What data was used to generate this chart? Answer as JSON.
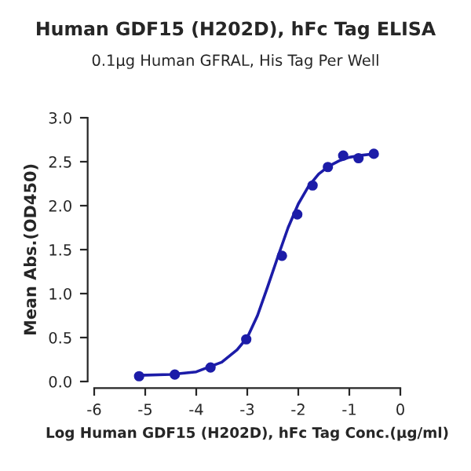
{
  "chart_data": {
    "type": "scatter",
    "title": "Human GDF15 (H202D), hFc Tag ELISA",
    "subtitle": "0.1µg Human GFRAL, His Tag Per Well",
    "xlabel": "Log Human GDF15 (H202D), hFc Tag Conc.(µg/ml)",
    "ylabel": "Mean Abs.(OD450)",
    "series": [
      {
        "color": "#1c1ca8",
        "marker": "circle",
        "x": [
          -5.12,
          -4.42,
          -3.72,
          -3.02,
          -2.32,
          -2.02,
          -1.72,
          -1.42,
          -1.12,
          -0.82,
          -0.52
        ],
        "values": [
          0.06,
          0.08,
          0.16,
          0.48,
          1.43,
          1.9,
          2.23,
          2.44,
          2.57,
          2.54,
          2.59
        ]
      },
      {
        "type": "line",
        "color": "#1c1ca8",
        "x": [
          -5.12,
          -4.5,
          -4.0,
          -3.5,
          -3.2,
          -3.0,
          -2.8,
          -2.6,
          -2.4,
          -2.2,
          -2.0,
          -1.8,
          -1.6,
          -1.4,
          -1.2,
          -1.0,
          -0.8,
          -0.52
        ],
        "values": [
          0.07,
          0.08,
          0.11,
          0.22,
          0.36,
          0.5,
          0.75,
          1.08,
          1.42,
          1.75,
          2.02,
          2.22,
          2.36,
          2.45,
          2.51,
          2.55,
          2.57,
          2.59
        ]
      }
    ],
    "xlim": [
      -6,
      0
    ],
    "xticks": [
      -6,
      -5,
      -4,
      -3,
      -2,
      -1,
      0
    ],
    "ylim": [
      0,
      3
    ],
    "yticks": [
      {
        "value": 0,
        "label": "0.0"
      },
      {
        "value": 0.5,
        "label": "0.5"
      },
      {
        "value": 1,
        "label": "1.0"
      },
      {
        "value": 1.5,
        "label": "1.5"
      },
      {
        "value": 2,
        "label": "2.0"
      },
      {
        "value": 2.5,
        "label": "2.5"
      },
      {
        "value": 3,
        "label": "3.0"
      }
    ],
    "grid": false,
    "legend": false
  }
}
